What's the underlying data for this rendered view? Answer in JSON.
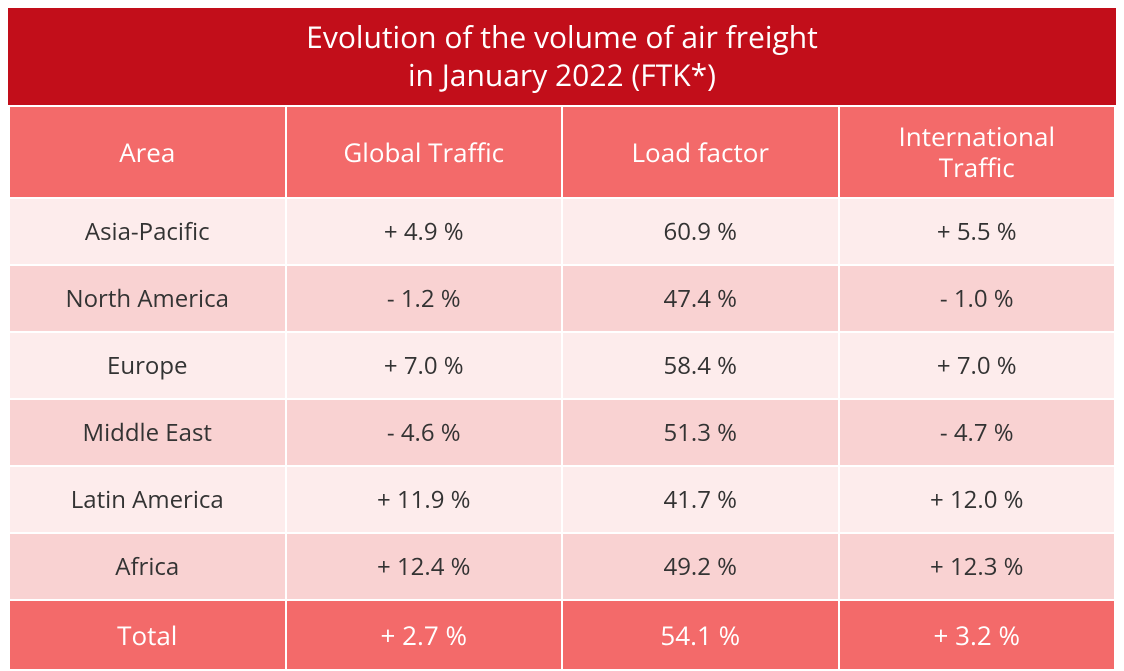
{
  "table": {
    "title": "Evolution of the volume of air freight\nin January 2022 (FTK*)",
    "title_bg": "#c20e1a",
    "title_color": "#ffffff",
    "header_bg": "#f36a6a",
    "header_color": "#ffffff",
    "row_bg_light": "#fdecec",
    "row_bg_dark": "#f9d2d2",
    "row_text_color": "#333333",
    "total_bg": "#f36a6a",
    "total_text_color": "#ffffff",
    "columns": [
      "Area",
      "Global Traffic",
      "Load factor",
      "International\nTraffic"
    ],
    "rows": [
      {
        "cells": [
          "Asia-Pacific",
          "+ 4.9 %",
          "60.9 %",
          "+ 5.5 %"
        ]
      },
      {
        "cells": [
          "North America",
          "- 1.2 %",
          "47.4 %",
          "- 1.0 %"
        ]
      },
      {
        "cells": [
          "Europe",
          "+ 7.0 %",
          "58.4 %",
          "+ 7.0 %"
        ]
      },
      {
        "cells": [
          "Middle East",
          "- 4.6 %",
          "51.3 %",
          "- 4.7 %"
        ]
      },
      {
        "cells": [
          "Latin America",
          "+ 11.9 %",
          "41.7 %",
          "+ 12.0 %"
        ]
      },
      {
        "cells": [
          "Africa",
          "+ 12.4 %",
          "49.2 %",
          "+ 12.3 %"
        ]
      }
    ],
    "total": {
      "cells": [
        "Total",
        "+ 2.7 %",
        "54.1 %",
        "+ 3.2 %"
      ]
    },
    "col_widths_pct": [
      25,
      25,
      25,
      25
    ]
  }
}
